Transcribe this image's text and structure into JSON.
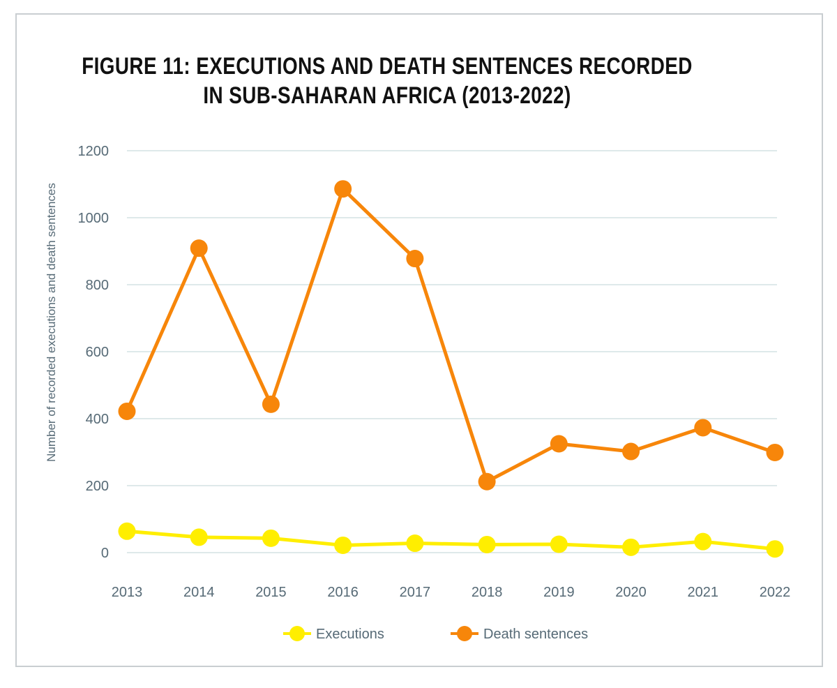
{
  "chart_data": {
    "type": "line",
    "title_line1": "FIGURE 11: EXECUTIONS AND DEATH SENTENCES RECORDED",
    "title_line2": "IN SUB-SAHARAN AFRICA (2013-2022)",
    "ylabel": "Number of recorded executions and death sentences",
    "xlabel": "",
    "categories": [
      "2013",
      "2014",
      "2015",
      "2016",
      "2017",
      "2018",
      "2019",
      "2020",
      "2021",
      "2022"
    ],
    "ylim": [
      0,
      1200
    ],
    "yticks": [
      0,
      200,
      400,
      600,
      800,
      1000,
      1200
    ],
    "grid": true,
    "legend_position": "bottom-center",
    "series": [
      {
        "name": "Executions",
        "color": "#ffee00",
        "values": [
          64,
          46,
          43,
          22,
          28,
          24,
          25,
          16,
          33,
          11
        ]
      },
      {
        "name": "Death sentences",
        "color": "#f7860a",
        "values": [
          422,
          909,
          443,
          1086,
          878,
          212,
          325,
          302,
          373,
          299
        ]
      }
    ]
  }
}
